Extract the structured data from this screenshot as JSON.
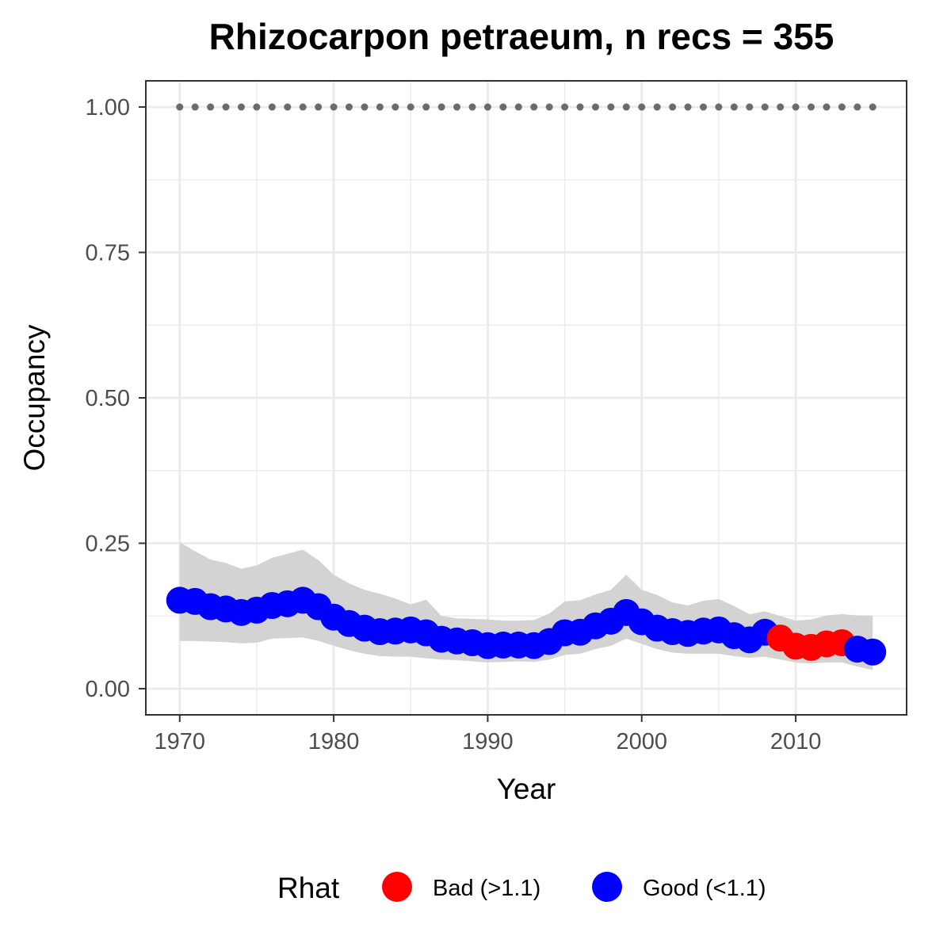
{
  "chart_data": {
    "type": "line",
    "title": "Rhizocarpon petraeum, n recs = 355",
    "xlabel": "Year",
    "ylabel": "Occupancy",
    "xlim": [
      1967.8,
      2017.2
    ],
    "ylim": [
      -0.045,
      1.045
    ],
    "x_ticks": [
      1970,
      1980,
      1990,
      2000,
      2010
    ],
    "y_ticks": [
      0.0,
      0.25,
      0.5,
      0.75,
      1.0
    ],
    "x_tick_labels": [
      "1970",
      "1980",
      "1990",
      "2000",
      "2010"
    ],
    "y_tick_labels": [
      "0.00",
      "0.25",
      "0.50",
      "0.75",
      "1.00"
    ],
    "grid": true,
    "legend": {
      "title": "Rhat",
      "position": "bottom",
      "entries": [
        {
          "label": "Bad (>1.1)",
          "color": "#ff0000"
        },
        {
          "label": "Good (<1.1)",
          "color": "#0000ff"
        }
      ]
    },
    "colors": {
      "Bad": "#ff0000",
      "Good": "#0000ff",
      "band": "#d3d3d3",
      "reference": "#6b6b6b"
    },
    "reference_line": {
      "y": 1.0,
      "style": "dotted",
      "x": [
        1970,
        2015
      ]
    },
    "x": [
      1970,
      1971,
      1972,
      1973,
      1974,
      1975,
      1976,
      1977,
      1978,
      1979,
      1980,
      1981,
      1982,
      1983,
      1984,
      1985,
      1986,
      1987,
      1988,
      1989,
      1990,
      1991,
      1992,
      1993,
      1994,
      1995,
      1996,
      1997,
      1998,
      1999,
      2000,
      2001,
      2002,
      2003,
      2004,
      2005,
      2006,
      2007,
      2008,
      2009,
      2010,
      2011,
      2012,
      2013,
      2014,
      2015
    ],
    "mean": [
      0.152,
      0.15,
      0.141,
      0.137,
      0.131,
      0.135,
      0.143,
      0.146,
      0.152,
      0.141,
      0.123,
      0.112,
      0.104,
      0.098,
      0.099,
      0.101,
      0.096,
      0.085,
      0.082,
      0.079,
      0.074,
      0.075,
      0.075,
      0.074,
      0.081,
      0.096,
      0.097,
      0.108,
      0.116,
      0.131,
      0.115,
      0.104,
      0.098,
      0.095,
      0.099,
      0.101,
      0.091,
      0.084,
      0.097,
      0.087,
      0.073,
      0.071,
      0.077,
      0.079,
      0.068,
      0.063
    ],
    "lower": [
      0.082,
      0.082,
      0.081,
      0.08,
      0.078,
      0.079,
      0.086,
      0.087,
      0.088,
      0.082,
      0.074,
      0.066,
      0.06,
      0.056,
      0.055,
      0.055,
      0.052,
      0.05,
      0.049,
      0.047,
      0.045,
      0.046,
      0.047,
      0.046,
      0.05,
      0.058,
      0.06,
      0.068,
      0.074,
      0.086,
      0.077,
      0.068,
      0.062,
      0.06,
      0.06,
      0.06,
      0.056,
      0.053,
      0.055,
      0.05,
      0.045,
      0.043,
      0.045,
      0.045,
      0.038,
      0.032
    ],
    "upper": [
      0.252,
      0.236,
      0.222,
      0.216,
      0.206,
      0.212,
      0.225,
      0.232,
      0.239,
      0.221,
      0.196,
      0.181,
      0.17,
      0.163,
      0.155,
      0.145,
      0.153,
      0.125,
      0.121,
      0.12,
      0.119,
      0.117,
      0.117,
      0.118,
      0.129,
      0.15,
      0.152,
      0.162,
      0.17,
      0.196,
      0.17,
      0.161,
      0.148,
      0.143,
      0.151,
      0.154,
      0.142,
      0.128,
      0.133,
      0.125,
      0.117,
      0.119,
      0.126,
      0.128,
      0.126,
      0.126
    ],
    "rhat": [
      "Good",
      "Good",
      "Good",
      "Good",
      "Good",
      "Good",
      "Good",
      "Good",
      "Good",
      "Good",
      "Good",
      "Good",
      "Good",
      "Good",
      "Good",
      "Good",
      "Good",
      "Good",
      "Good",
      "Good",
      "Good",
      "Good",
      "Good",
      "Good",
      "Good",
      "Good",
      "Good",
      "Good",
      "Good",
      "Good",
      "Good",
      "Good",
      "Good",
      "Good",
      "Good",
      "Good",
      "Good",
      "Good",
      "Good",
      "Bad",
      "Bad",
      "Bad",
      "Bad",
      "Bad",
      "Good",
      "Good"
    ]
  }
}
